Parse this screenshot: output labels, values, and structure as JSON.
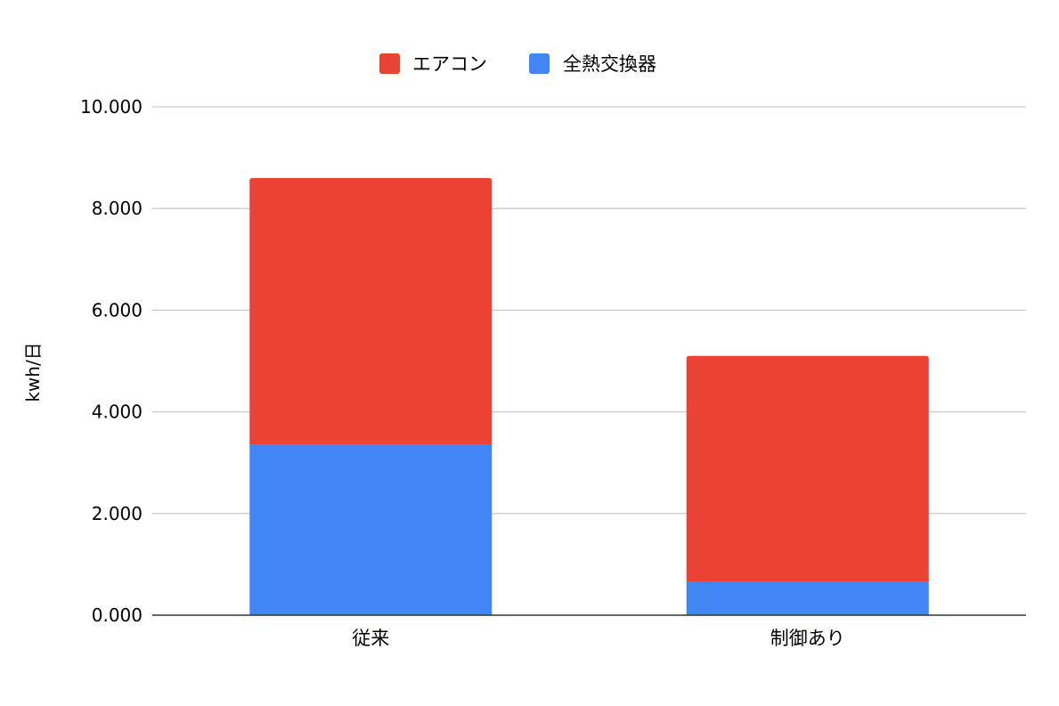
{
  "chart_data": {
    "type": "bar",
    "stacked": true,
    "title": "",
    "xlabel": "",
    "ylabel": "kwh/日",
    "categories": [
      "従来",
      "制御あり"
    ],
    "series": [
      {
        "name": "全熱交換器",
        "color": "#4285f4",
        "values": [
          3.35,
          0.65
        ]
      },
      {
        "name": "エアコン",
        "color": "#ea4335",
        "values": [
          5.25,
          4.45
        ]
      }
    ],
    "legend_order": [
      "エアコン",
      "全熱交換器"
    ],
    "legend_position": "top",
    "ylim": [
      0,
      10
    ],
    "yticks": [
      0,
      2,
      4,
      6,
      8,
      10
    ],
    "ytick_labels": [
      "0.000",
      "2.000",
      "4.000",
      "6.000",
      "8.000",
      "10.000"
    ],
    "grid": true
  }
}
